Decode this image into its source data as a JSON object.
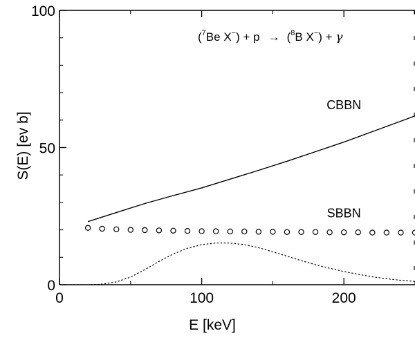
{
  "chart_data": {
    "type": "line",
    "xlabel": "E [keV]",
    "ylabel": "S(E)  [ev b]",
    "xlim": [
      0,
      250
    ],
    "ylim": [
      0,
      100
    ],
    "x_ticks": [
      0,
      100,
      200
    ],
    "y_ticks": [
      0,
      50,
      100
    ],
    "x_tick_labels": [
      "0",
      "100",
      "200"
    ],
    "y_tick_labels": [
      "0",
      "50",
      "100"
    ],
    "reaction": {
      "lhs_open": "(",
      "be_mass": "7",
      "be_text": "Be X",
      "minus": "−",
      "lhs_close": ") + p",
      "arrow": "→",
      "b_open": "(",
      "b_mass": "8",
      "b_text": "B X",
      "b_close": ") + ",
      "gamma": "γ"
    },
    "series": [
      {
        "name": "CBBN",
        "style": "solid",
        "x": [
          20,
          40,
          60,
          80,
          100,
          120,
          140,
          160,
          180,
          200,
          220,
          240,
          250
        ],
        "y": [
          23,
          26.3,
          29.6,
          32.5,
          35.3,
          38.5,
          41.7,
          45,
          48.5,
          52,
          55.8,
          59.6,
          61.5
        ]
      },
      {
        "name": "SBBN",
        "style": "circles",
        "x": [
          20,
          30,
          40,
          50,
          60,
          70,
          80,
          90,
          100,
          110,
          120,
          130,
          140,
          150,
          160,
          170,
          180,
          190,
          200,
          210,
          220,
          230,
          240,
          250
        ],
        "y": [
          20.7,
          20.4,
          20.2,
          20.0,
          19.9,
          19.8,
          19.7,
          19.6,
          19.5,
          19.5,
          19.4,
          19.4,
          19.3,
          19.3,
          19.2,
          19.2,
          19.2,
          19.1,
          19.1,
          19.1,
          19.0,
          19.0,
          19.0,
          19.0
        ]
      },
      {
        "name": "",
        "style": "dotted",
        "x": [
          0,
          20,
          30,
          40,
          50,
          60,
          70,
          80,
          90,
          100,
          110,
          120,
          130,
          140,
          150,
          160,
          170,
          180,
          190,
          200,
          210,
          220,
          230,
          240,
          250
        ],
        "y": [
          0,
          0,
          0.2,
          1.0,
          2.8,
          5.5,
          8.5,
          11.2,
          13.3,
          14.6,
          15.2,
          15.2,
          14.6,
          13.5,
          12.0,
          10.4,
          8.8,
          7.3,
          6.0,
          4.8,
          3.8,
          2.9,
          2.2,
          1.6,
          1.2
        ]
      }
    ],
    "annotations": [
      {
        "text": "CBBN",
        "x": 200,
        "y": 64
      },
      {
        "text": "SBBN",
        "x": 200,
        "y": 24.5
      }
    ]
  }
}
